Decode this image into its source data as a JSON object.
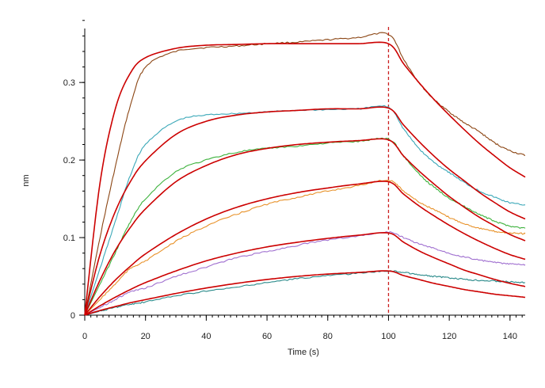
{
  "chart_data": {
    "type": "line",
    "xlabel": "Time (s)",
    "ylabel": "nm",
    "xlim": [
      0,
      145
    ],
    "ylim": [
      0,
      0.39
    ],
    "x_ticks": [
      0,
      20,
      40,
      60,
      80,
      100,
      120,
      140
    ],
    "y_ticks": [
      0,
      0.1,
      0.2,
      0.3
    ],
    "x_tick_labels": [
      "0",
      "20",
      "40",
      "60",
      "80",
      "100",
      "120",
      "140"
    ],
    "y_tick_labels": [
      "0",
      "0.1",
      "0.2",
      "0.3"
    ],
    "minor_x_step": 2,
    "minor_y_step": 0.02,
    "grid": false,
    "legend": "none",
    "vline": {
      "x": 100,
      "color": "#cc2020",
      "style": "dashed"
    },
    "fit_color": "#cc0000",
    "x": [
      0,
      5,
      10,
      15,
      20,
      30,
      40,
      50,
      60,
      70,
      80,
      90,
      100,
      105,
      110,
      115,
      120,
      125,
      130,
      135,
      140,
      145
    ],
    "series": [
      {
        "color": "#8b4513",
        "values": [
          0,
          0.1,
          0.19,
          0.27,
          0.32,
          0.34,
          0.345,
          0.347,
          0.35,
          0.352,
          0.355,
          0.358,
          0.362,
          0.33,
          0.3,
          0.278,
          0.262,
          0.248,
          0.236,
          0.222,
          0.212,
          0.206
        ]
      },
      {
        "color": "#3ba8b8",
        "values": [
          0,
          0.06,
          0.12,
          0.18,
          0.22,
          0.25,
          0.258,
          0.26,
          0.262,
          0.264,
          0.265,
          0.266,
          0.268,
          0.24,
          0.215,
          0.197,
          0.184,
          0.171,
          0.16,
          0.152,
          0.145,
          0.142
        ]
      },
      {
        "color": "#3db23d",
        "values": [
          0,
          0.04,
          0.08,
          0.12,
          0.15,
          0.185,
          0.2,
          0.21,
          0.215,
          0.218,
          0.222,
          0.224,
          0.227,
          0.205,
          0.182,
          0.165,
          0.151,
          0.14,
          0.13,
          0.121,
          0.115,
          0.112
        ]
      },
      {
        "color": "#e8922a",
        "values": [
          0,
          0.02,
          0.04,
          0.06,
          0.07,
          0.095,
          0.115,
          0.13,
          0.143,
          0.152,
          0.16,
          0.167,
          0.174,
          0.16,
          0.146,
          0.136,
          0.126,
          0.118,
          0.112,
          0.108,
          0.106,
          0.105
        ]
      },
      {
        "color": "#a070d0",
        "values": [
          0,
          0.01,
          0.02,
          0.03,
          0.035,
          0.05,
          0.062,
          0.074,
          0.082,
          0.09,
          0.097,
          0.102,
          0.107,
          0.1,
          0.092,
          0.086,
          0.08,
          0.075,
          0.071,
          0.068,
          0.066,
          0.065
        ]
      },
      {
        "color": "#2a8a8a",
        "values": [
          0,
          0.005,
          0.01,
          0.014,
          0.017,
          0.025,
          0.031,
          0.036,
          0.042,
          0.047,
          0.051,
          0.054,
          0.057,
          0.055,
          0.052,
          0.05,
          0.048,
          0.046,
          0.045,
          0.044,
          0.043,
          0.042
        ]
      }
    ],
    "fits": [
      {
        "values": [
          0,
          0.17,
          0.265,
          0.312,
          0.332,
          0.344,
          0.348,
          0.349,
          0.35,
          0.35,
          0.35,
          0.35,
          0.35,
          0.324,
          0.3,
          0.278,
          0.258,
          0.239,
          0.221,
          0.205,
          0.19,
          0.178
        ]
      },
      {
        "values": [
          0,
          0.078,
          0.133,
          0.172,
          0.199,
          0.233,
          0.25,
          0.258,
          0.262,
          0.264,
          0.266,
          0.266,
          0.267,
          0.245,
          0.224,
          0.205,
          0.188,
          0.173,
          0.158,
          0.145,
          0.133,
          0.124
        ]
      },
      {
        "values": [
          0,
          0.045,
          0.083,
          0.113,
          0.137,
          0.172,
          0.193,
          0.207,
          0.215,
          0.22,
          0.223,
          0.225,
          0.226,
          0.205,
          0.186,
          0.169,
          0.153,
          0.139,
          0.126,
          0.115,
          0.104,
          0.096
        ]
      },
      {
        "values": [
          0,
          0.024,
          0.045,
          0.063,
          0.079,
          0.104,
          0.124,
          0.139,
          0.15,
          0.158,
          0.164,
          0.169,
          0.172,
          0.156,
          0.141,
          0.128,
          0.116,
          0.105,
          0.095,
          0.086,
          0.078,
          0.072
        ]
      },
      {
        "values": [
          0,
          0.012,
          0.023,
          0.033,
          0.042,
          0.057,
          0.07,
          0.08,
          0.088,
          0.094,
          0.099,
          0.103,
          0.106,
          0.094,
          0.083,
          0.074,
          0.066,
          0.058,
          0.052,
          0.046,
          0.041,
          0.037
        ]
      },
      {
        "values": [
          0,
          0.006,
          0.011,
          0.016,
          0.02,
          0.028,
          0.035,
          0.041,
          0.046,
          0.05,
          0.053,
          0.055,
          0.057,
          0.051,
          0.046,
          0.041,
          0.037,
          0.033,
          0.03,
          0.027,
          0.025,
          0.023
        ]
      }
    ]
  }
}
